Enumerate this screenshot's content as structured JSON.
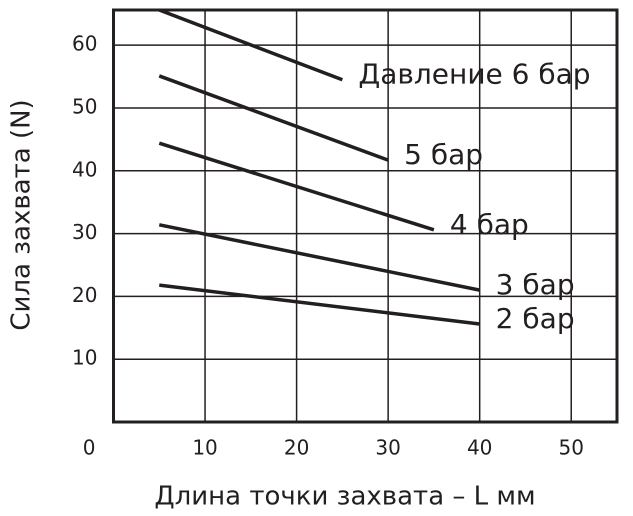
{
  "chart_data": {
    "type": "line",
    "x_label": "Длина точки захвата – L мм",
    "y_label": "Сила захвата (N)",
    "xlim": [
      0,
      55
    ],
    "ylim": [
      0,
      65.6
    ],
    "xticks": [
      0,
      10,
      20,
      30,
      40,
      50
    ],
    "yticks": [
      10,
      20,
      30,
      40,
      50,
      60
    ],
    "grid": true,
    "series": [
      {
        "name": "Давление 6 бар",
        "color": "#231f20",
        "x": [
          5,
          25
        ],
        "values": [
          65.6,
          54.5
        ]
      },
      {
        "name": "5 бар",
        "color": "#231f20",
        "x": [
          5,
          30
        ],
        "values": [
          55.1,
          41.7
        ]
      },
      {
        "name": "4 бар",
        "color": "#231f20",
        "x": [
          5,
          35
        ],
        "values": [
          44.4,
          30.6
        ]
      },
      {
        "name": "3 бар",
        "color": "#231f20",
        "x": [
          5,
          40
        ],
        "values": [
          31.4,
          21.0
        ]
      },
      {
        "name": "2 бар",
        "color": "#231f20",
        "x": [
          5,
          40
        ],
        "values": [
          21.8,
          15.6
        ]
      }
    ]
  }
}
